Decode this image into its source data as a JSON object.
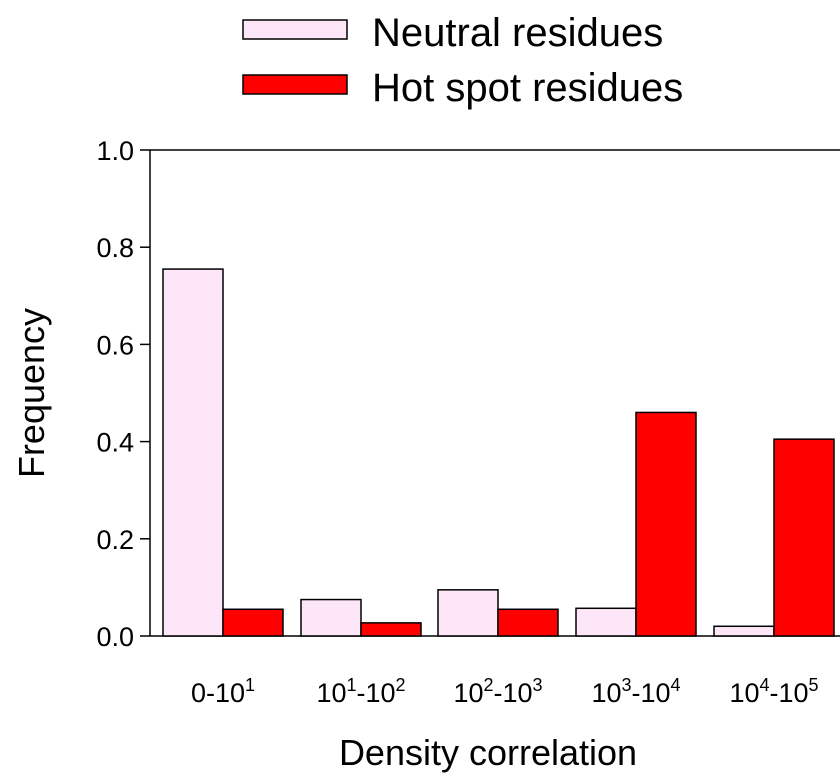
{
  "chart_data": {
    "type": "bar",
    "title": "",
    "xlabel": "Density correlation",
    "ylabel": "Frequency",
    "ylim": [
      0,
      1.0
    ],
    "yticks": [
      "0.0",
      "0.2",
      "0.4",
      "0.6",
      "0.8",
      "1.0"
    ],
    "categories": [
      {
        "base": "0-10",
        "sup": "1"
      },
      {
        "base": "10",
        "sup": "1",
        "mid": "-10",
        "sup2": "2"
      },
      {
        "base": "10",
        "sup": "2",
        "mid": "-10",
        "sup2": "3"
      },
      {
        "base": "10",
        "sup": "3",
        "mid": "-10",
        "sup2": "4"
      },
      {
        "base": "10",
        "sup": "4",
        "mid": "-10",
        "sup2": "5"
      }
    ],
    "series": [
      {
        "name": "Neutral residues",
        "color": "#fde6f8",
        "values": [
          0.755,
          0.075,
          0.095,
          0.057,
          0.02
        ]
      },
      {
        "name": "Hot spot residues",
        "color": "#ff0000",
        "values": [
          0.055,
          0.027,
          0.055,
          0.46,
          0.405
        ]
      }
    ],
    "legend_position": "top",
    "grid": false
  }
}
